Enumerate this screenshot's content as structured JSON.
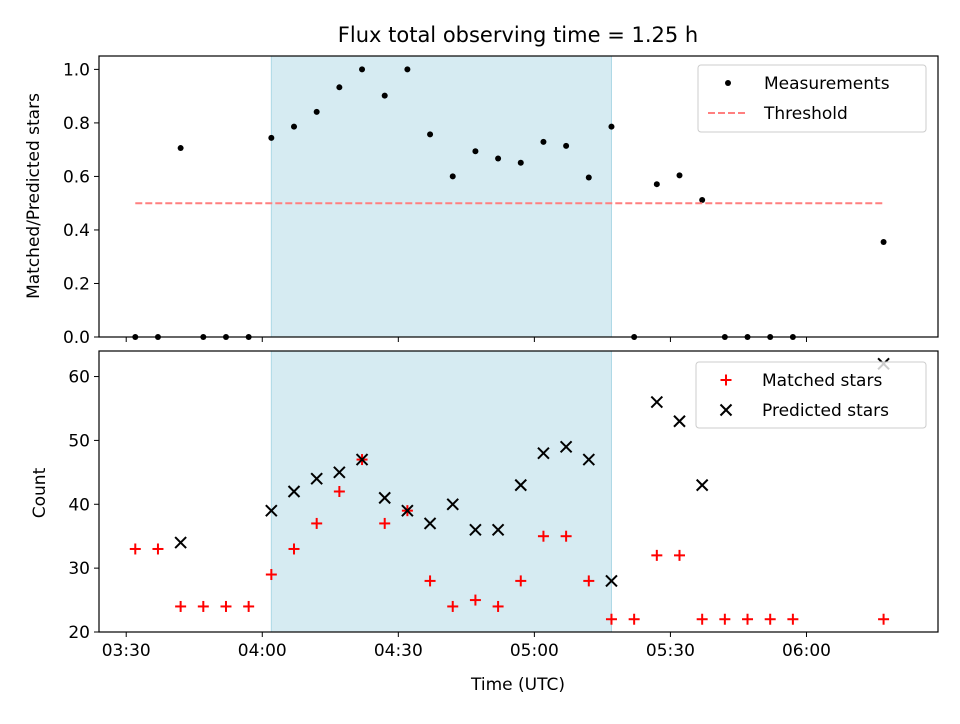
{
  "chart_data": [
    {
      "type": "scatter",
      "title": "Flux total observing time = 1.25 h",
      "ylabel": "Matched/Predicted stars",
      "xlim": [
        "03:24",
        "06:29"
      ],
      "ylim": [
        0,
        1.05
      ],
      "xticks": [
        "03:30",
        "04:00",
        "04:30",
        "05:00",
        "05:30",
        "06:00"
      ],
      "yticks": [
        "0.0",
        "0.2",
        "0.4",
        "0.6",
        "0.8",
        "1.0"
      ],
      "shaded_span": [
        "04:02",
        "05:17"
      ],
      "shade_color": "#add8e6",
      "grid": false,
      "legend_position": "top-right",
      "series": [
        {
          "name": "Measurements",
          "marker": "dot",
          "color": "#000000",
          "points": [
            {
              "x": "03:32",
              "y": 0
            },
            {
              "x": "03:37",
              "y": 0
            },
            {
              "x": "03:42",
              "y": 0.706
            },
            {
              "x": "03:47",
              "y": 0
            },
            {
              "x": "03:52",
              "y": 0
            },
            {
              "x": "03:57",
              "y": 0
            },
            {
              "x": "04:02",
              "y": 0.744
            },
            {
              "x": "04:07",
              "y": 0.786
            },
            {
              "x": "04:12",
              "y": 0.841
            },
            {
              "x": "04:17",
              "y": 0.933
            },
            {
              "x": "04:22",
              "y": 1.0
            },
            {
              "x": "04:27",
              "y": 0.902
            },
            {
              "x": "04:32",
              "y": 1.0
            },
            {
              "x": "04:37",
              "y": 0.757
            },
            {
              "x": "04:42",
              "y": 0.6
            },
            {
              "x": "04:47",
              "y": 0.694
            },
            {
              "x": "04:52",
              "y": 0.667
            },
            {
              "x": "04:57",
              "y": 0.651
            },
            {
              "x": "05:02",
              "y": 0.729
            },
            {
              "x": "05:07",
              "y": 0.714
            },
            {
              "x": "05:12",
              "y": 0.596
            },
            {
              "x": "05:17",
              "y": 0.786
            },
            {
              "x": "05:22",
              "y": 0
            },
            {
              "x": "05:27",
              "y": 0.571
            },
            {
              "x": "05:32",
              "y": 0.604
            },
            {
              "x": "05:37",
              "y": 0.512
            },
            {
              "x": "05:42",
              "y": 0
            },
            {
              "x": "05:47",
              "y": 0
            },
            {
              "x": "05:52",
              "y": 0
            },
            {
              "x": "05:57",
              "y": 0
            },
            {
              "x": "06:17",
              "y": 0.355
            }
          ]
        },
        {
          "name": "Threshold",
          "type": "line",
          "style": "dashed",
          "color": "#ff7f7f",
          "points": [
            {
              "x": "03:32",
              "y": 0.5
            },
            {
              "x": "06:17",
              "y": 0.5
            }
          ]
        }
      ]
    },
    {
      "type": "scatter",
      "xlabel": "Time (UTC)",
      "ylabel": "Count",
      "xlim": [
        "03:24",
        "06:29"
      ],
      "ylim": [
        20,
        64
      ],
      "xticks": [
        "03:30",
        "04:00",
        "04:30",
        "05:00",
        "05:30",
        "06:00"
      ],
      "yticks": [
        "20",
        "30",
        "40",
        "50",
        "60"
      ],
      "shaded_span": [
        "04:02",
        "05:17"
      ],
      "shade_color": "#add8e6",
      "grid": false,
      "legend_position": "top-right",
      "series": [
        {
          "name": "Matched stars",
          "marker": "plus",
          "color": "#ff0000",
          "points": [
            {
              "x": "03:32",
              "y": 33
            },
            {
              "x": "03:37",
              "y": 33
            },
            {
              "x": "03:42",
              "y": 24
            },
            {
              "x": "03:47",
              "y": 24
            },
            {
              "x": "03:52",
              "y": 24
            },
            {
              "x": "03:57",
              "y": 24
            },
            {
              "x": "04:02",
              "y": 29
            },
            {
              "x": "04:07",
              "y": 33
            },
            {
              "x": "04:12",
              "y": 37
            },
            {
              "x": "04:17",
              "y": 42
            },
            {
              "x": "04:22",
              "y": 47
            },
            {
              "x": "04:27",
              "y": 37
            },
            {
              "x": "04:32",
              "y": 39
            },
            {
              "x": "04:37",
              "y": 28
            },
            {
              "x": "04:42",
              "y": 24
            },
            {
              "x": "04:47",
              "y": 25
            },
            {
              "x": "04:52",
              "y": 24
            },
            {
              "x": "04:57",
              "y": 28
            },
            {
              "x": "05:02",
              "y": 35
            },
            {
              "x": "05:07",
              "y": 35
            },
            {
              "x": "05:12",
              "y": 28
            },
            {
              "x": "05:17",
              "y": 22
            },
            {
              "x": "05:22",
              "y": 22
            },
            {
              "x": "05:27",
              "y": 32
            },
            {
              "x": "05:32",
              "y": 32
            },
            {
              "x": "05:37",
              "y": 22
            },
            {
              "x": "05:42",
              "y": 22
            },
            {
              "x": "05:47",
              "y": 22
            },
            {
              "x": "05:52",
              "y": 22
            },
            {
              "x": "05:57",
              "y": 22
            },
            {
              "x": "06:17",
              "y": 22
            }
          ]
        },
        {
          "name": "Predicted stars",
          "marker": "x",
          "color": "#000000",
          "points": [
            {
              "x": "03:42",
              "y": 34
            },
            {
              "x": "04:02",
              "y": 39
            },
            {
              "x": "04:07",
              "y": 42
            },
            {
              "x": "04:12",
              "y": 44
            },
            {
              "x": "04:17",
              "y": 45
            },
            {
              "x": "04:22",
              "y": 47
            },
            {
              "x": "04:27",
              "y": 41
            },
            {
              "x": "04:32",
              "y": 39
            },
            {
              "x": "04:37",
              "y": 37
            },
            {
              "x": "04:42",
              "y": 40
            },
            {
              "x": "04:47",
              "y": 36
            },
            {
              "x": "04:52",
              "y": 36
            },
            {
              "x": "04:57",
              "y": 43
            },
            {
              "x": "05:02",
              "y": 48
            },
            {
              "x": "05:07",
              "y": 49
            },
            {
              "x": "05:12",
              "y": 47
            },
            {
              "x": "05:17",
              "y": 28
            },
            {
              "x": "05:27",
              "y": 56
            },
            {
              "x": "05:32",
              "y": 53
            },
            {
              "x": "05:37",
              "y": 43
            },
            {
              "x": "06:17",
              "y": 62
            }
          ]
        }
      ]
    }
  ]
}
